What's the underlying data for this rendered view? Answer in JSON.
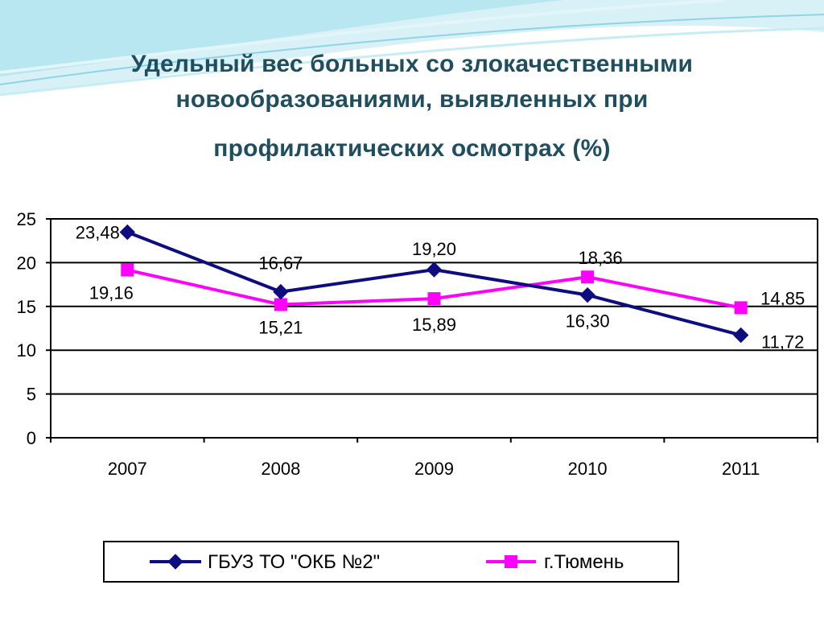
{
  "slide": {
    "title_lines": [
      "Удельный вес больных со злокачественными",
      "новообразованиями, выявленных при",
      "профилактических осмотрах (%)"
    ]
  },
  "chart_data": {
    "type": "line",
    "title": "Удельный вес больных со злокачественными новообразованиями, выявленных при профилактических осмотрах (%)",
    "categories": [
      "2007",
      "2008",
      "2009",
      "2010",
      "2011"
    ],
    "ylim": [
      0,
      25
    ],
    "yticks": [
      0,
      5,
      10,
      15,
      20,
      25
    ],
    "grid": true,
    "legend_position": "bottom",
    "series": [
      {
        "name": "ГБУЗ ТО \"ОКБ №2\"",
        "values": [
          23.48,
          16.67,
          19.2,
          16.3,
          11.72
        ],
        "labels": [
          "23,48",
          "16,67",
          "19,20",
          "16,30",
          "11,72"
        ],
        "color": "#0d0d80",
        "marker": "diamond"
      },
      {
        "name": "г.Тюмень",
        "values": [
          19.16,
          15.21,
          15.89,
          18.36,
          14.85
        ],
        "labels": [
          "19,16",
          "15,21",
          "15,89",
          "18,36",
          "14,85"
        ],
        "color": "#ff00ff",
        "marker": "square"
      }
    ]
  }
}
